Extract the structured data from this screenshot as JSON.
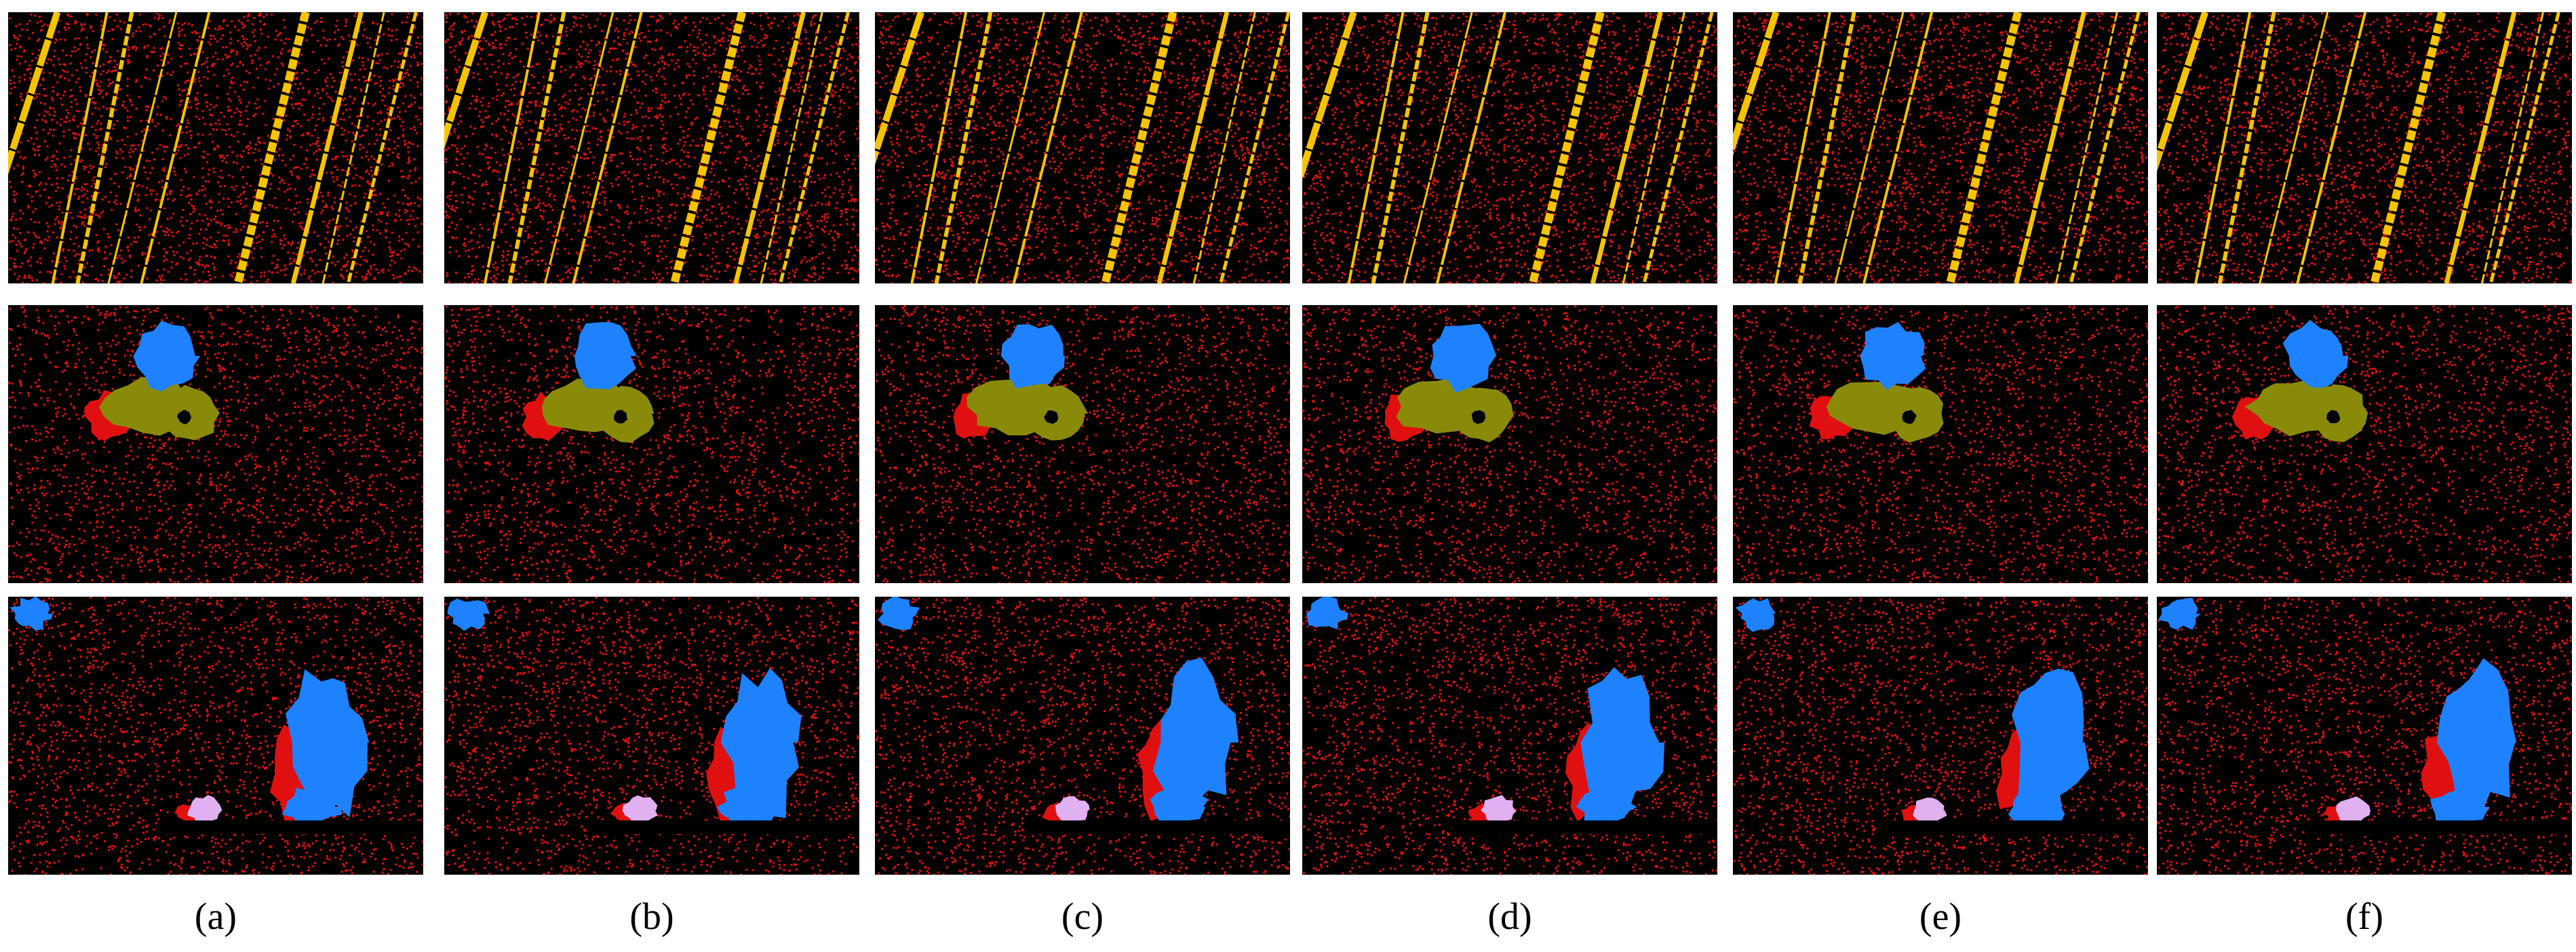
{
  "figure": {
    "captions": [
      "(a)",
      "(b)",
      "(c)",
      "(d)",
      "(e)",
      "(f)"
    ],
    "rows": [
      "streaks",
      "two-objects",
      "multi-objects"
    ],
    "colors": {
      "background": "#000000",
      "noise": "#e01010",
      "streak": "#f5c400",
      "object_blue": "#1e82ff",
      "object_olive": "#8a8a0a",
      "object_pink": "#e0b0f0"
    }
  }
}
